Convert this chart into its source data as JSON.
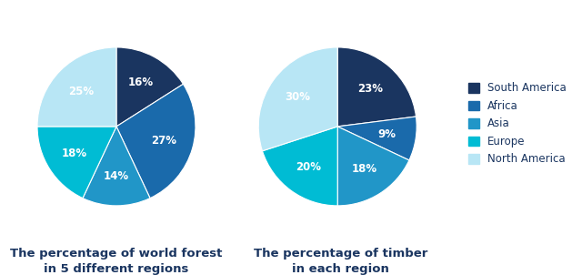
{
  "chart1": {
    "title": "The percentage of world forest\nin 5 different regions",
    "values": [
      16,
      27,
      14,
      18,
      25
    ],
    "regions": [
      "South America",
      "Africa",
      "Asia",
      "Europe",
      "North America"
    ]
  },
  "chart2": {
    "title": "The percentage of timber\nin each region",
    "values": [
      23,
      9,
      18,
      20,
      30
    ],
    "regions": [
      "South America",
      "Africa",
      "Asia",
      "Europe",
      "North America"
    ]
  },
  "colors": [
    "#1a3560",
    "#1a6aab",
    "#2196c8",
    "#00bcd4",
    "#b8e6f5"
  ],
  "legend_labels": [
    "South America",
    "Africa",
    "Asia",
    "Europe",
    "North America"
  ],
  "background_color": "#ffffff",
  "startangle": 90,
  "label_fontsize": 8.5,
  "title_fontsize": 9.5
}
